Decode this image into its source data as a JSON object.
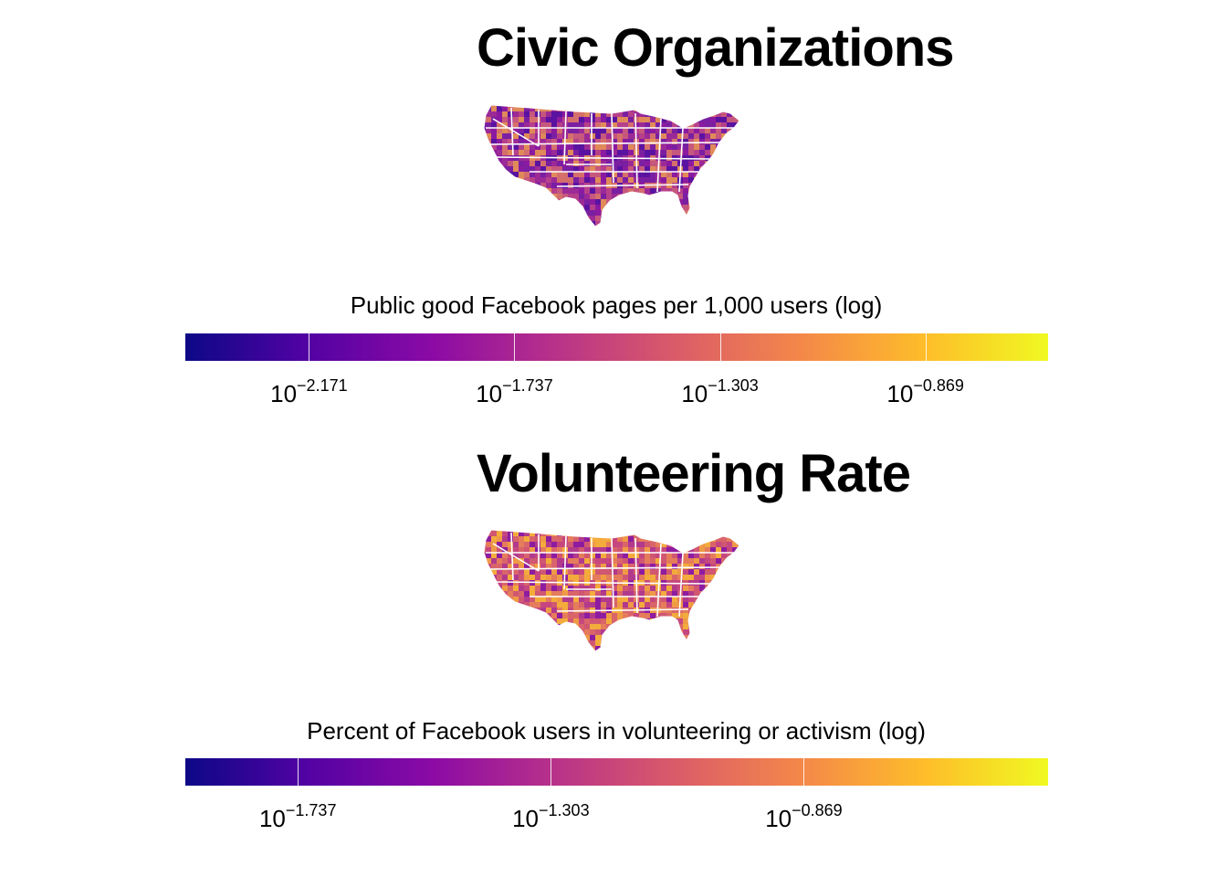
{
  "colors": {
    "plasma_stops": [
      "#0d0887",
      "#5302a3",
      "#8b0aa5",
      "#b83289",
      "#db5c68",
      "#f48849",
      "#febd2a",
      "#f0f921"
    ],
    "state_border": "#ffffff"
  },
  "panels": [
    {
      "title": "Civic Organizations",
      "map_palette": [
        "#7a1fa2",
        "#9c2a96",
        "#b6408a",
        "#c6577d",
        "#d56f6c",
        "#5a13a0",
        "#8b1aa0",
        "#e08a5a"
      ],
      "legend": {
        "title": "Public good Facebook pages per 1,000 users (log)",
        "scale": "log",
        "range": [
          -2.432,
          -0.61
        ],
        "ticks": [
          {
            "base": "10",
            "exponent": "−2.171",
            "value": -2.171
          },
          {
            "base": "10",
            "exponent": "−1.737",
            "value": -1.737
          },
          {
            "base": "10",
            "exponent": "−1.303",
            "value": -1.303
          },
          {
            "base": "10",
            "exponent": "−0.869",
            "value": -0.869
          }
        ]
      }
    },
    {
      "title": "Volunteering Rate",
      "map_palette": [
        "#d9656a",
        "#e57c5b",
        "#c6477f",
        "#ef9a46",
        "#b23a8c",
        "#8e1ca0",
        "#f3ab3c",
        "#d05772"
      ],
      "legend": {
        "title": "Percent of Facebook users in volunteering or activism (log)",
        "scale": "log",
        "range": [
          -1.93,
          -0.45
        ],
        "ticks": [
          {
            "base": "10",
            "exponent": "−1.737",
            "value": -1.737
          },
          {
            "base": "10",
            "exponent": "−1.303",
            "value": -1.303
          },
          {
            "base": "10",
            "exponent": "−0.869",
            "value": -0.869
          }
        ]
      }
    }
  ]
}
